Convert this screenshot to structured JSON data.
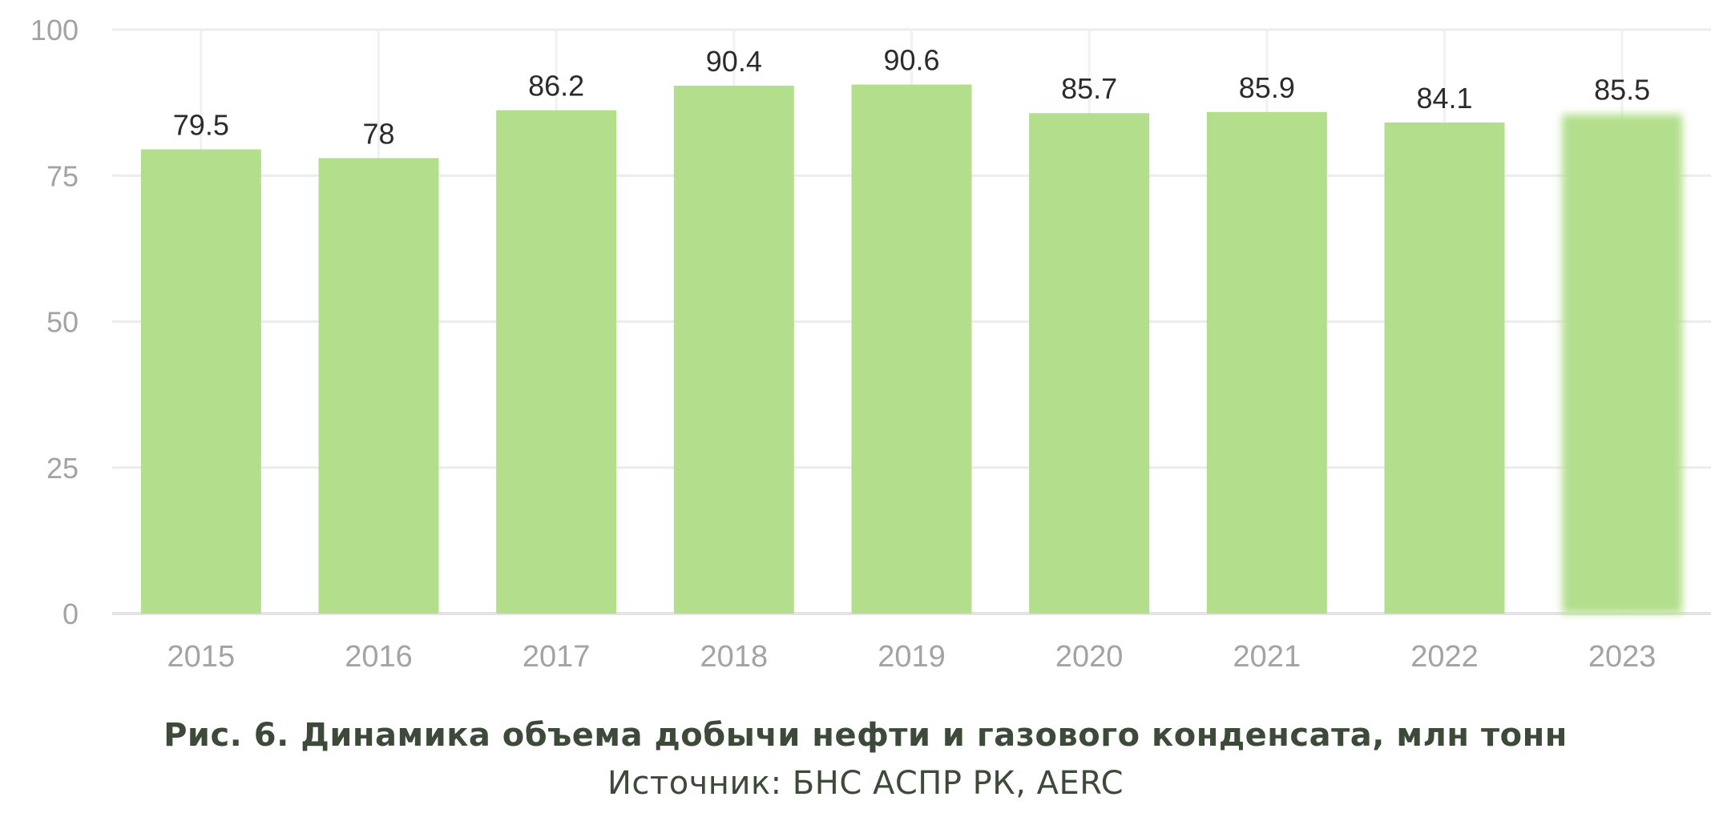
{
  "chart_data": {
    "type": "bar",
    "categories": [
      "2015",
      "2016",
      "2017",
      "2018",
      "2019",
      "2020",
      "2021",
      "2022",
      "2023"
    ],
    "values": [
      79.5,
      78,
      86.2,
      90.4,
      90.6,
      85.7,
      85.9,
      84.1,
      85.5
    ],
    "data_labels": [
      "79.5",
      "78",
      "86.2",
      "90.4",
      "90.6",
      "85.7",
      "85.9",
      "84.1",
      "85.5"
    ],
    "y_ticks": [
      0,
      25,
      50,
      75,
      100
    ],
    "ylim": [
      0,
      100
    ],
    "grid": true,
    "bar_color": "#b3df8c",
    "highlight_last_bar": true
  },
  "caption": {
    "title": "Рис. 6. Динамика объема добычи нефти и газового конденсата, млн тонн",
    "source": "Источник: БНС АСПР РК, AERC"
  }
}
